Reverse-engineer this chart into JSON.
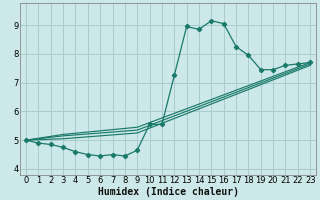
{
  "xlabel": "Humidex (Indice chaleur)",
  "background_color": "#cce8e8",
  "grid_color": "#aacccc",
  "line_color": "#1a7a6a",
  "xlim": [
    -0.5,
    23.5
  ],
  "ylim": [
    3.8,
    9.75
  ],
  "xticks": [
    0,
    1,
    2,
    3,
    4,
    5,
    6,
    7,
    8,
    9,
    10,
    11,
    12,
    13,
    14,
    15,
    16,
    17,
    18,
    19,
    20,
    21,
    22,
    23
  ],
  "yticks": [
    4,
    5,
    6,
    7,
    8,
    9
  ],
  "main_x": [
    0,
    1,
    2,
    3,
    4,
    5,
    6,
    7,
    8,
    9,
    10,
    11,
    12,
    13,
    14,
    15,
    16,
    17,
    18,
    19,
    20,
    21,
    22,
    23
  ],
  "main_y": [
    5.0,
    4.9,
    4.85,
    4.75,
    4.6,
    4.5,
    4.45,
    4.5,
    4.45,
    4.65,
    5.55,
    5.55,
    7.25,
    8.95,
    8.85,
    9.15,
    9.05,
    8.25,
    7.95,
    7.45,
    7.45,
    7.6,
    7.65,
    7.7
  ],
  "trend1_x": [
    0,
    3,
    9,
    23
  ],
  "trend1_y": [
    5.0,
    5.2,
    5.45,
    7.7
  ],
  "trend2_x": [
    0,
    3,
    9,
    23
  ],
  "trend2_y": [
    5.0,
    5.15,
    5.35,
    7.65
  ],
  "trend3_x": [
    0,
    3,
    9,
    23
  ],
  "trend3_y": [
    5.0,
    5.05,
    5.25,
    7.6
  ]
}
